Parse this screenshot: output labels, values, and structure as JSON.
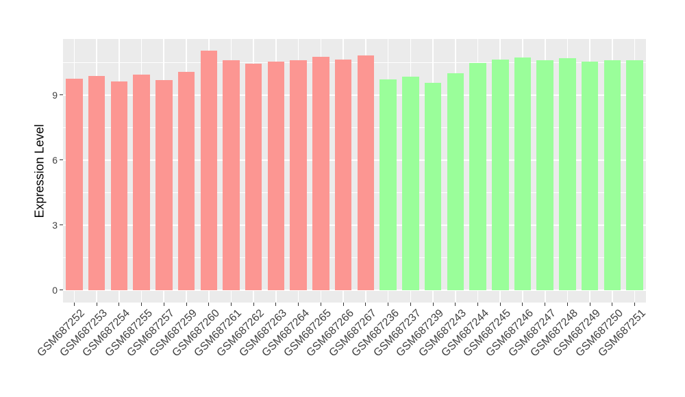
{
  "chart_data": {
    "type": "bar",
    "title": "",
    "xlabel": "",
    "ylabel": "Expression Level",
    "y_ticks": [
      0,
      3,
      6,
      9
    ],
    "y_minor_ticks": [
      1.5,
      4.5,
      7.5,
      10.5
    ],
    "ylim": [
      -0.57,
      11.58
    ],
    "grid": true,
    "legend": "none",
    "x_tick_rotation": 45,
    "panel_background": "#EBEBEB",
    "grid_color": "#FFFFFF",
    "axis_text_color": "#404040",
    "group_colors": {
      "red": "#FC9692",
      "green": "#9AFE9A"
    },
    "categories": [
      "GSM687252",
      "GSM687253",
      "GSM687254",
      "GSM687255",
      "GSM687257",
      "GSM687259",
      "GSM687260",
      "GSM687261",
      "GSM687262",
      "GSM687263",
      "GSM687264",
      "GSM687265",
      "GSM687266",
      "GSM687267",
      "GSM687236",
      "GSM687237",
      "GSM687239",
      "GSM687243",
      "GSM687244",
      "GSM687245",
      "GSM687246",
      "GSM687247",
      "GSM687248",
      "GSM687249",
      "GSM687250",
      "GSM687251"
    ],
    "values": [
      9.74,
      9.87,
      9.62,
      9.94,
      9.69,
      10.07,
      11.05,
      10.59,
      10.43,
      10.53,
      10.6,
      10.76,
      10.64,
      10.82,
      9.71,
      9.86,
      9.55,
      9.99,
      10.47,
      10.64,
      10.73,
      10.59,
      10.69,
      10.53,
      10.61,
      10.59
    ],
    "groups": [
      "red",
      "red",
      "red",
      "red",
      "red",
      "red",
      "red",
      "red",
      "red",
      "red",
      "red",
      "red",
      "red",
      "red",
      "green",
      "green",
      "green",
      "green",
      "green",
      "green",
      "green",
      "green",
      "green",
      "green",
      "green",
      "green"
    ]
  }
}
